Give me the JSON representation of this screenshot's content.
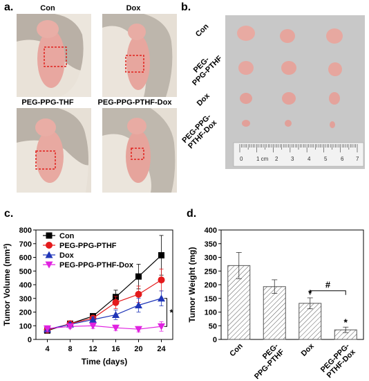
{
  "panels": {
    "a": {
      "letter": "a.",
      "photo_labels": [
        "Con",
        "Dox",
        "PEG-PPG-THF",
        "PEG-PPG-PTHF-Dox"
      ]
    },
    "b": {
      "letter": "b.",
      "row_labels": [
        "Con",
        "PEG-\nPPG-PTHF",
        "Dox",
        "PEG-PPG-\nPTHF-Dox"
      ],
      "ruler_labels": [
        "0",
        "1 cm",
        "2",
        "3",
        "4",
        "5",
        "6",
        "7"
      ]
    },
    "c": {
      "letter": "c."
    },
    "d": {
      "letter": "d."
    }
  },
  "chart_data": [
    {
      "type": "line",
      "panel": "c",
      "xlabel": "Time (days)",
      "ylabel": "Tumor Volume (mm³)",
      "x": [
        4,
        8,
        12,
        16,
        20,
        24
      ],
      "xlim": [
        2,
        26
      ],
      "ylim": [
        0,
        800
      ],
      "xticks": [
        4,
        8,
        12,
        16,
        20,
        24
      ],
      "yticks": [
        0,
        100,
        200,
        300,
        400,
        500,
        600,
        700,
        800
      ],
      "legend": "top-left",
      "series": [
        {
          "name": "Con",
          "marker": "square",
          "color": "#000000",
          "values": [
            65,
            115,
            170,
            310,
            460,
            615
          ],
          "errors": [
            15,
            15,
            20,
            50,
            90,
            145
          ]
        },
        {
          "name": "PEG-PPG-PTHF",
          "marker": "circle",
          "color": "#e41a1c",
          "values": [
            70,
            115,
            155,
            270,
            330,
            435
          ],
          "errors": [
            15,
            15,
            20,
            45,
            60,
            80
          ]
        },
        {
          "name": "Dox",
          "marker": "triangle-up",
          "color": "#1f35b8",
          "values": [
            75,
            110,
            145,
            180,
            250,
            300
          ],
          "errors": [
            15,
            15,
            20,
            35,
            50,
            55
          ]
        },
        {
          "name": "PEG-PPG-PTHF-Dox",
          "marker": "triangle-down",
          "color": "#e022e0",
          "values": [
            80,
            95,
            100,
            85,
            75,
            95
          ],
          "errors": [
            20,
            15,
            20,
            20,
            20,
            35
          ]
        }
      ],
      "annotation": "*"
    },
    {
      "type": "bar",
      "panel": "d",
      "ylabel": "Tumor Weight (mg)",
      "categories": [
        "Con",
        "PEG-\nPPG-PTHF",
        "Dox",
        "PEG-PPG-\nPTHF-Dox"
      ],
      "values": [
        270,
        193,
        132,
        35
      ],
      "errors": [
        48,
        25,
        20,
        10
      ],
      "ylim": [
        0,
        400
      ],
      "yticks": [
        0,
        50,
        100,
        150,
        200,
        250,
        300,
        350,
        400
      ],
      "significance": [
        "",
        "",
        "*",
        "*"
      ],
      "bracket_label": "#"
    }
  ]
}
